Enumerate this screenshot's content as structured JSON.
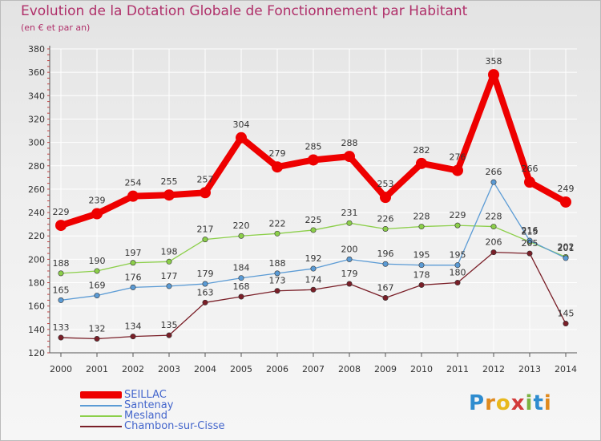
{
  "chart_data": {
    "type": "line",
    "title": "Evolution de la Dotation Globale de Fonctionnement par Habitant",
    "subtitle": "(en € et par an)",
    "xlabel": "",
    "ylabel": "",
    "x": [
      "2000",
      "2001",
      "2002",
      "2003",
      "2004",
      "2005",
      "2006",
      "2007",
      "2008",
      "2009",
      "2010",
      "2011",
      "2012",
      "2013",
      "2014"
    ],
    "ylim": [
      120,
      380
    ],
    "yticks": [
      120,
      140,
      160,
      180,
      200,
      220,
      240,
      260,
      280,
      300,
      320,
      340,
      360,
      380
    ],
    "grid": true,
    "legend_position": "bottom-left",
    "series": [
      {
        "name": "SEILLAC",
        "color": "#ee0000",
        "values": [
          229,
          239,
          254,
          255,
          257,
          304,
          279,
          285,
          288,
          253,
          282,
          276,
          358,
          266,
          249
        ]
      },
      {
        "name": "Santenay",
        "color": "#5b9bd5",
        "values": [
          165,
          169,
          176,
          177,
          179,
          184,
          188,
          192,
          200,
          196,
          195,
          195,
          266,
          216,
          201
        ]
      },
      {
        "name": "Mesland",
        "color": "#8ccf4a",
        "values": [
          188,
          190,
          197,
          198,
          217,
          220,
          222,
          225,
          231,
          226,
          228,
          229,
          228,
          215,
          202
        ]
      },
      {
        "name": "Chambon-sur-Cisse",
        "color": "#7a1f28",
        "values": [
          133,
          132,
          134,
          135,
          163,
          168,
          173,
          174,
          179,
          167,
          178,
          180,
          206,
          205,
          145
        ]
      }
    ]
  },
  "logo": {
    "letters": [
      "P",
      "r",
      "o",
      "x",
      "i",
      "t",
      "i"
    ]
  }
}
